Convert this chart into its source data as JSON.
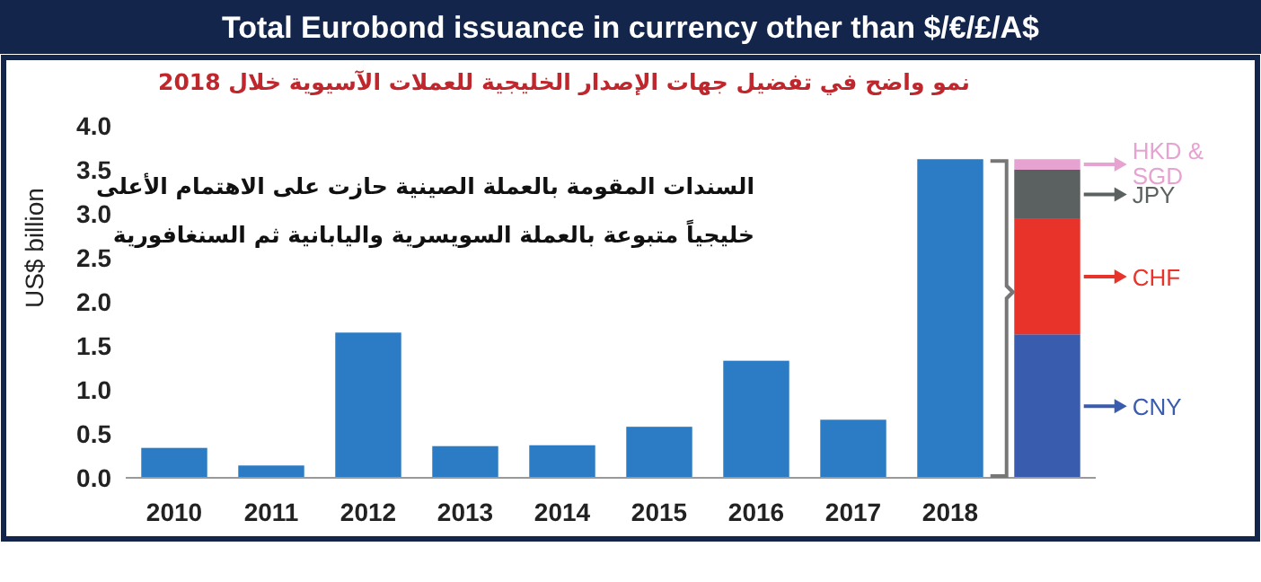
{
  "chart_data": {
    "type": "bar",
    "title": "Total Eurobond issuance in currency other than $/€/£/A$",
    "subtitle": "نمو واضح في تفضيل جهات الإصدار الخليجية للعملات الآسيوية خلال 2018",
    "annotations": [
      "السندات المقومة بالعملة الصينية حازت على الاهتمام الأعلى",
      "خليجياً متبوعة بالعملة السويسرية واليابانية ثم السنغافورية"
    ],
    "ylabel": "US$ billion",
    "categories": [
      "2010",
      "2011",
      "2012",
      "2013",
      "2014",
      "2015",
      "2016",
      "2017",
      "2018",
      null
    ],
    "stacked": true,
    "series": [
      {
        "color": "#2b7cc4",
        "values": [
          0.34,
          0.14,
          1.65,
          0.36,
          0.37,
          0.58,
          1.33,
          0.66,
          3.62,
          null
        ]
      },
      {
        "name": "CNY",
        "color": "#3a5cae",
        "values": [
          null,
          null,
          null,
          null,
          null,
          null,
          null,
          null,
          null,
          1.63
        ]
      },
      {
        "name": "CHF",
        "color": "#e8332b",
        "values": [
          null,
          null,
          null,
          null,
          null,
          null,
          null,
          null,
          null,
          1.31
        ]
      },
      {
        "name": "JPY",
        "color": "#5b6060",
        "values": [
          null,
          null,
          null,
          null,
          null,
          null,
          null,
          null,
          null,
          0.56
        ]
      },
      {
        "name": "HKD & SGD",
        "color": "#e6a3d2",
        "values": [
          null,
          null,
          null,
          null,
          null,
          null,
          null,
          null,
          null,
          0.12
        ]
      }
    ],
    "ylim": [
      0,
      4
    ],
    "yticks": [
      {
        "value": 0,
        "label": "0.0"
      },
      {
        "value": 0.5,
        "label": "0.5"
      },
      {
        "value": 1,
        "label": "1.0"
      },
      {
        "value": 1.5,
        "label": "1.5"
      },
      {
        "value": 2,
        "label": "2.0"
      },
      {
        "value": 2.5,
        "label": "2.5"
      },
      {
        "value": 3,
        "label": "3.0"
      },
      {
        "value": 3.5,
        "label": "3.5"
      },
      {
        "value": 4,
        "label": "4.0"
      }
    ],
    "grid": false,
    "legend": "right"
  }
}
